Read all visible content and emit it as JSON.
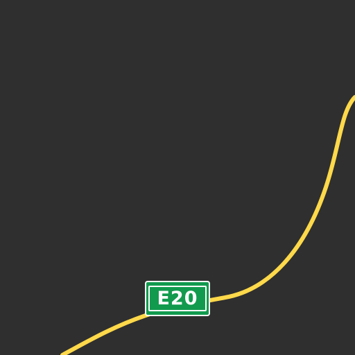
{
  "map": {
    "background_color": "#2f2f2f",
    "road": {
      "color": "#ffd94a",
      "route_label": "E20",
      "shield_color": "#129a4e",
      "shield_text_color": "#ffffff"
    }
  }
}
